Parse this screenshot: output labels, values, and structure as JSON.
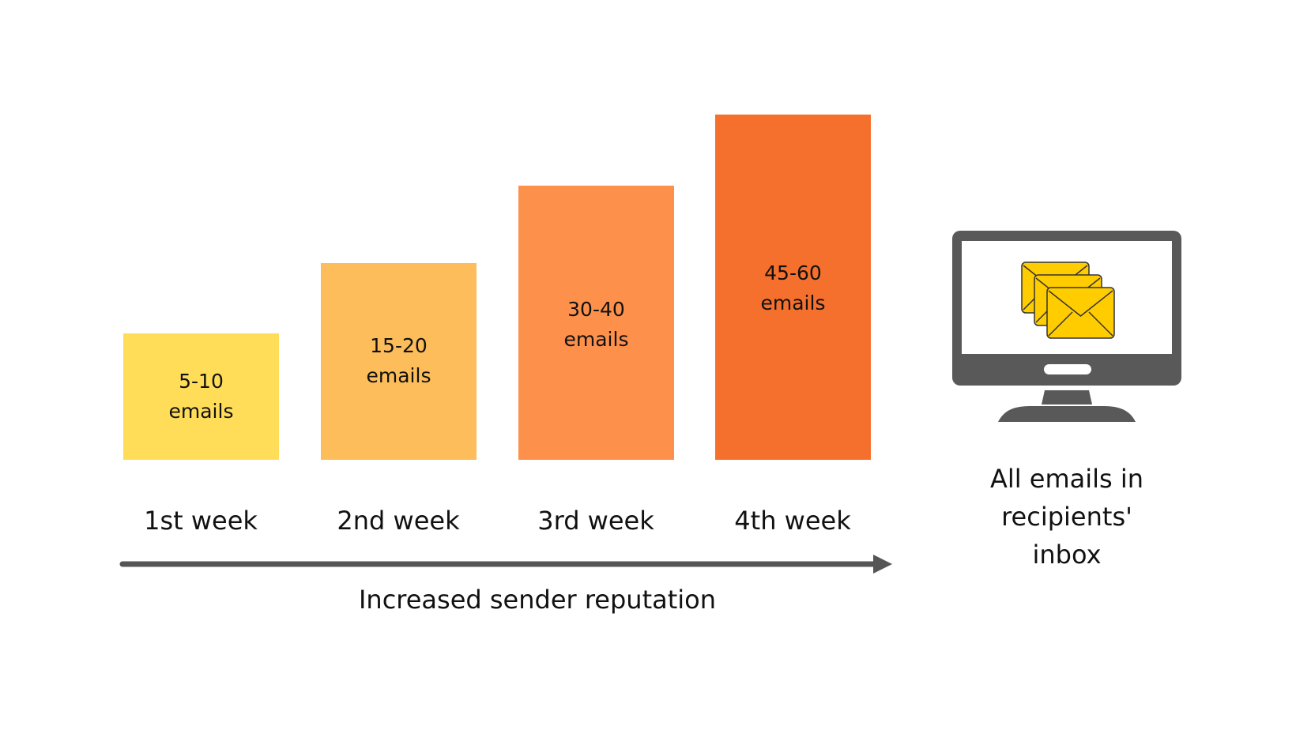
{
  "bars": [
    {
      "label": "5-10\nemails",
      "color": "#FFDD59",
      "level": 1
    },
    {
      "label": "15-20\nemails",
      "color": "#FCBD5A",
      "level": 2
    },
    {
      "label": "30-40\nemails",
      "color": "#FD914C",
      "level": 3
    },
    {
      "label": "45-60\nemails",
      "color": "#F6702D",
      "level": 4
    }
  ],
  "weeks": [
    "1st week",
    "2nd week",
    "3rd week",
    "4th week"
  ],
  "axis": {
    "label": "Increased sender reputation",
    "color": "#555555"
  },
  "inbox": {
    "caption": "All emails in\nrecipients'\ninbox",
    "icon": "monitor-envelopes-icon",
    "monitor_color": "#595959",
    "envelope_color": "#FFCC00"
  }
}
